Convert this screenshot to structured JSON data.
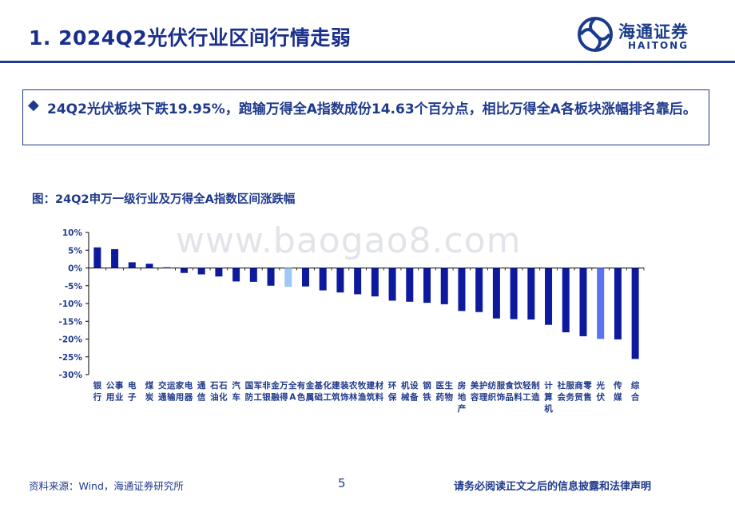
{
  "header": {
    "title": "1. 2024Q2光伏行业区间行情走弱",
    "logo_cn": "海通证券",
    "logo_en": "HAITONG"
  },
  "summary": {
    "bullet": "◆",
    "text": "24Q2光伏板块下跌19.95%，跑输万得全A指数成份14.63个百分点，相比万得全A各板块涨幅排名靠后。"
  },
  "figure": {
    "caption": "图：24Q2申万一级行业及万得全A指数区间涨跌幅"
  },
  "watermark": "www.baogao8.com",
  "footer": {
    "source": "资料来源：Wind，海通证券研究所",
    "page": "5",
    "disclaimer": "请务必阅读正文之后的信息披露和法律声明"
  },
  "colors": {
    "bar": "#0d1a9e",
    "highlight_light": "#9ec9f2",
    "highlight_mid": "#5b73f0",
    "title": "#1a2f8c"
  },
  "chart_data": {
    "type": "bar",
    "title": "",
    "xlabel": "",
    "ylabel": "",
    "ylim": [
      -30,
      10
    ],
    "yticks": [
      "10%",
      "5%",
      "0%",
      "-5%",
      "-10%",
      "-15%",
      "-20%",
      "-25%",
      "-30%"
    ],
    "grid": false,
    "categories": [
      "银行",
      "公用事业",
      "电子",
      "煤炭",
      "交通运输",
      "家用电器",
      "通信",
      "石油石化",
      "汽车",
      "国防军工",
      "非银金融",
      "万得全A",
      "有色金属",
      "基础化工",
      "建筑装饰",
      "农林牧渔",
      "建筑材料",
      "环保",
      "机械设备",
      "钢铁",
      "医药生物",
      "房地产",
      "美容护理",
      "纺织服饰",
      "食品饮料",
      "轻工制造",
      "计算机",
      "社会服务",
      "商贸零售",
      "光伏",
      "传媒",
      "综合"
    ],
    "values": [
      5.8,
      5.3,
      1.6,
      1.2,
      0.2,
      -1.4,
      -1.8,
      -2.4,
      -3.8,
      -3.9,
      -5.0,
      -5.3,
      -5.2,
      -6.3,
      -6.9,
      -7.4,
      -8.0,
      -9.2,
      -9.5,
      -9.8,
      -10.2,
      -12.1,
      -12.4,
      -14.2,
      -14.4,
      -14.5,
      -16.0,
      -18.1,
      -19.2,
      -19.95,
      -20.1,
      -25.6
    ],
    "highlights": {
      "万得全A": "light",
      "光伏": "mid"
    }
  }
}
